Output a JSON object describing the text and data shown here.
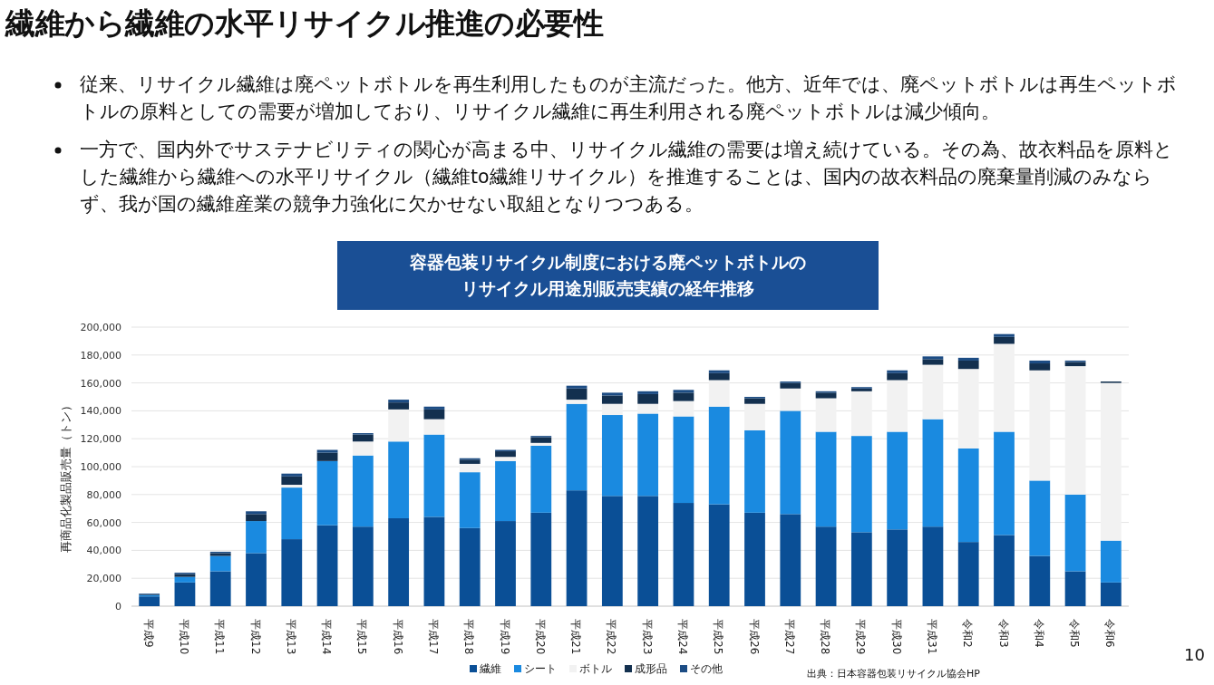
{
  "chart_data": {
    "type": "bar",
    "stacked": true,
    "title": "繊維から繊維の水平リサイクル推進の必要性",
    "subtitle": "容器包装リサイクル制度における廃ペットボトルのリサイクル用途別販売実績の経年推移",
    "ylabel": "再商品化製品販売量（トン）",
    "categories": [
      "平成9",
      "平成10",
      "平成11",
      "平成12",
      "平成13",
      "平成14",
      "平成15",
      "平成16",
      "平成17",
      "平成18",
      "平成19",
      "平成20",
      "平成21",
      "平成22",
      "平成23",
      "平成24",
      "平成25",
      "平成26",
      "平成27",
      "平成28",
      "平成29",
      "平成30",
      "平成31",
      "令和2",
      "令和3",
      "令和4",
      "令和5",
      "令和6"
    ],
    "series": [
      {
        "name": "繊維",
        "color": "#0a4f96",
        "values": [
          7000,
          17000,
          25000,
          38000,
          48000,
          58000,
          57000,
          63000,
          64000,
          56000,
          61000,
          67000,
          83000,
          79000,
          79000,
          74000,
          73000,
          67000,
          66000,
          57000,
          53000,
          55000,
          57000,
          46000,
          51000,
          36000,
          25000,
          17000
        ]
      },
      {
        "name": "シート",
        "color": "#1a8ae0",
        "values": [
          1000,
          4000,
          11000,
          23000,
          37000,
          46000,
          51000,
          55000,
          59000,
          40000,
          43000,
          48000,
          62000,
          58000,
          59000,
          62000,
          70000,
          59000,
          74000,
          68000,
          69000,
          70000,
          77000,
          67000,
          74000,
          54000,
          55000,
          30000
        ]
      },
      {
        "name": "ボトル",
        "color": "#f2f2f2",
        "values": [
          0,
          0,
          null,
          null,
          2000,
          null,
          10000,
          23000,
          11000,
          6000,
          3000,
          2000,
          3000,
          8000,
          7000,
          11000,
          19000,
          19000,
          16000,
          24000,
          32000,
          37000,
          39000,
          57000,
          63000,
          79000,
          92000,
          113000
        ]
      },
      {
        "name": "成形品",
        "color": "#13304f",
        "values": [
          500,
          2000,
          2000,
          5000,
          6000,
          6000,
          5000,
          5000,
          7000,
          3000,
          4000,
          4000,
          8000,
          6000,
          7000,
          6000,
          5000,
          4000,
          4000,
          4000,
          2000,
          5000,
          4000,
          6000,
          5000,
          5000,
          3000,
          1000
        ]
      },
      {
        "name": "その他",
        "color": "#1c4c84",
        "values": [
          500,
          1000,
          1000,
          2000,
          2000,
          2000,
          1000,
          2000,
          2000,
          1000,
          1000,
          1000,
          2000,
          2000,
          2000,
          2000,
          2000,
          1000,
          1000,
          1000,
          1000,
          2000,
          2000,
          2000,
          2000,
          2000,
          1000,
          0
        ]
      }
    ],
    "ylim": [
      0,
      200000
    ],
    "yticks": [
      {
        "value": 0,
        "label": "0"
      },
      {
        "value": 20000,
        "label": "20,000"
      },
      {
        "value": 40000,
        "label": "40,000"
      },
      {
        "value": 60000,
        "label": "60,000"
      },
      {
        "value": 80000,
        "label": "80,000"
      },
      {
        "value": 100000,
        "label": "100,000"
      },
      {
        "value": 120000,
        "label": "120,000"
      },
      {
        "value": 140000,
        "label": "140,000"
      },
      {
        "value": 160000,
        "label": "160,000"
      },
      {
        "value": 180000,
        "label": "180,000"
      },
      {
        "value": 200000,
        "label": "200,000"
      }
    ],
    "grid": "y",
    "legend": "bottom",
    "annotations": [
      "従来、リサイクル繊維は廃ペットボトルを再生利用したものが主流だった。他方、近年では、廃ペットボトルは再生ペットボトルの原料としての需要が増加しており、リサイクル繊維に再生利用される廃ペットボトルは減少傾向。",
      "一方で、国内外でサステナビリティの関心が高まる中、リサイクル繊維の需要は増え続けている。その為、故衣料品を原料とした繊維から繊維への水平リサイクル（繊維to繊維リサイクル）を推進することは、国内の故衣料品の廃棄量削減のみならず、我が国の繊維産業の競争力強化に欠かせない取組となりつつある。",
      "出典：日本容器包装リサイクル協会HP",
      "10"
    ]
  }
}
